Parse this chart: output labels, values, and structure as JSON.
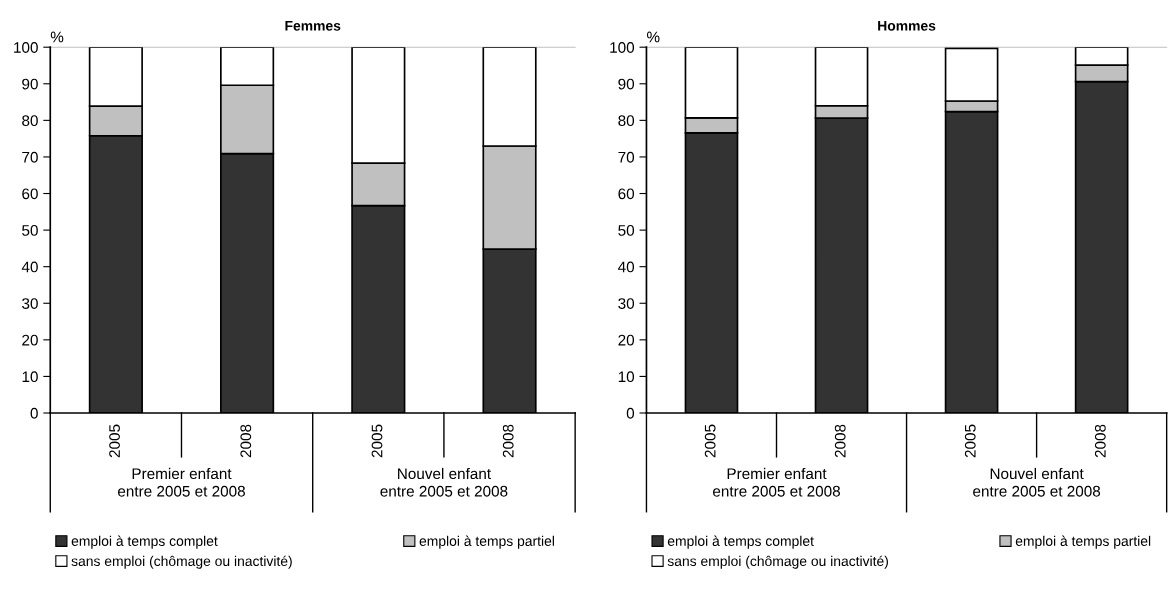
{
  "chart_data": [
    {
      "type": "bar",
      "title": "Femmes",
      "ylabel": "%",
      "stacked": true,
      "categories": [
        "2005",
        "2008",
        "2005",
        "2008"
      ],
      "ylim": [
        0,
        100
      ],
      "yticks": [
        0,
        10,
        20,
        30,
        40,
        50,
        60,
        70,
        80,
        90,
        100
      ],
      "grid": false,
      "legend": "bottom",
      "annotations": [
        "Premier enfant\nentre 2005 et 2008",
        "Nouvel enfant\nentre 2005 et 2008"
      ],
      "series": [
        {
          "name": "emploi à temps complet",
          "color": "#333333",
          "values": [
            75.8,
            70.9,
            56.7,
            44.8
          ]
        },
        {
          "name": "emploi à temps partiel",
          "color": "#c0c0c0",
          "values": [
            8.1,
            18.7,
            11.6,
            28.2
          ]
        },
        {
          "name": "sans emploi (chômage ou inactivité)",
          "color": "#ffffff",
          "values": [
            16.1,
            10.4,
            31.7,
            27.0
          ]
        }
      ]
    },
    {
      "type": "bar",
      "title": "Hommes",
      "ylabel": "%",
      "stacked": true,
      "categories": [
        "2005",
        "2008",
        "2005",
        "2008"
      ],
      "ylim": [
        0,
        100
      ],
      "yticks": [
        0,
        10,
        20,
        30,
        40,
        50,
        60,
        70,
        80,
        90,
        100
      ],
      "grid": false,
      "legend": "bottom",
      "annotations": [
        "Premier enfant\nentre 2005 et 2008",
        "Nouvel enfant\nentre 2005 et 2008"
      ],
      "series": [
        {
          "name": "emploi à temps complet",
          "color": "#333333",
          "values": [
            76.6,
            80.6,
            82.4,
            90.6
          ]
        },
        {
          "name": "emploi à temps partiel",
          "color": "#c0c0c0",
          "values": [
            4.1,
            3.4,
            2.9,
            4.5
          ]
        },
        {
          "name": "sans emploi (chômage ou inactivité)",
          "color": "#ffffff",
          "values": [
            19.3,
            16.0,
            14.4,
            4.9
          ]
        }
      ]
    }
  ]
}
